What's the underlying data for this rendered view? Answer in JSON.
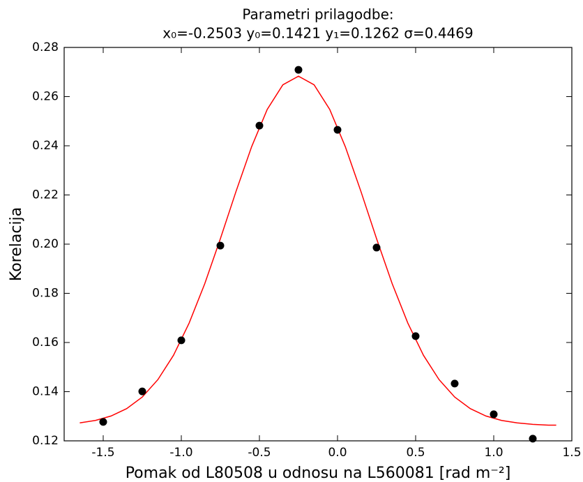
{
  "chart_data": {
    "type": "scatter",
    "title": "Parametri prilagodbe:",
    "subtitle": "x₀=-0.2503 y₀=0.1421 y₁=0.1262 σ=0.4469",
    "x_label": "Pomak od L80508 u odnosu na L560081 [rad m⁻²]",
    "y_label": "Korelacija",
    "xlim": [
      -1.75,
      1.5
    ],
    "ylim": [
      0.12,
      0.28
    ],
    "xticks": [
      -1.5,
      {
        "value": -1,
        "label": "-1.0"
      },
      -0.5,
      {
        "value": 0,
        "label": "0.0"
      },
      0.5,
      {
        "value": 1,
        "label": "1.0"
      },
      1.5
    ],
    "yticks": [
      0.12,
      0.14,
      0.16,
      0.18,
      {
        "value": 0.2,
        "label": "0.20"
      },
      0.22,
      0.24,
      0.26,
      0.28
    ],
    "grid": false,
    "series": [
      {
        "type": "line",
        "color": "#ff0000",
        "x": [
          -1.65,
          -1.55,
          -1.45,
          -1.35,
          -1.25,
          -1.15,
          -1.05,
          -0.95,
          -0.85,
          -0.75,
          -0.65,
          -0.55,
          -0.45,
          -0.35,
          -0.25,
          -0.15,
          -0.05,
          0.05,
          0.15,
          0.25,
          0.35,
          0.45,
          0.55,
          0.65,
          0.75,
          0.85,
          0.95,
          1.05,
          1.15,
          1.25,
          1.35,
          1.4
        ],
        "values": [
          0.1273,
          0.1283,
          0.1301,
          0.1331,
          0.1378,
          0.1449,
          0.1548,
          0.1679,
          0.1839,
          0.2022,
          0.2214,
          0.2396,
          0.2548,
          0.2648,
          0.2683,
          0.2648,
          0.2548,
          0.2396,
          0.2214,
          0.2022,
          0.1839,
          0.1679,
          0.1548,
          0.1449,
          0.1378,
          0.1331,
          0.1301,
          0.1283,
          0.1273,
          0.1267,
          0.1264,
          0.1264
        ]
      },
      {
        "type": "scatter",
        "color": "#000000",
        "x": [
          -1.5,
          -1.25,
          -1,
          -0.75,
          -0.5,
          -0.25,
          0,
          0.25,
          0.5,
          0.75,
          1,
          1.25
        ],
        "values": [
          0.1277,
          0.1401,
          0.1609,
          0.1994,
          0.2482,
          0.2709,
          0.2465,
          0.1986,
          0.1626,
          0.1433,
          0.1308,
          0.1209
        ]
      }
    ]
  }
}
